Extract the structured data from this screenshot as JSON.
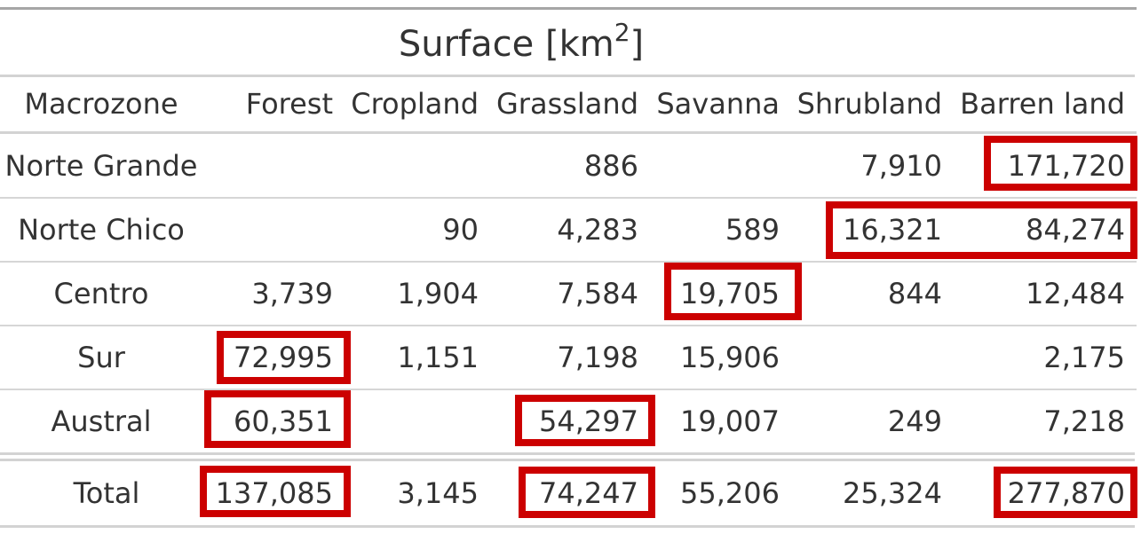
{
  "title": {
    "text": "Surface [km",
    "superscript": "2",
    "suffix": "]"
  },
  "columns": [
    "Macrozone",
    "Forest",
    "Cropland",
    "Grassland",
    "Savanna",
    "Shrubland",
    "Barren land"
  ],
  "rows": [
    {
      "macrozone": "Norte Grande",
      "forest": "",
      "cropland": "",
      "grassland": "886",
      "savanna": "",
      "shrubland": "7,910",
      "barren_land": "171,720"
    },
    {
      "macrozone": "Norte Chico",
      "forest": "",
      "cropland": "90",
      "grassland": "4,283",
      "savanna": "589",
      "shrubland": "16,321",
      "barren_land": "84,274"
    },
    {
      "macrozone": "Centro",
      "forest": "3,739",
      "cropland": "1,904",
      "grassland": "7,584",
      "savanna": "19,705",
      "shrubland": "844",
      "barren_land": "12,484"
    },
    {
      "macrozone": "Sur",
      "forest": "72,995",
      "cropland": "1,151",
      "grassland": "7,198",
      "savanna": "15,906",
      "shrubland": "",
      "barren_land": "2,175"
    },
    {
      "macrozone": "Austral",
      "forest": "60,351",
      "cropland": "",
      "grassland": "54,297",
      "savanna": "19,007",
      "shrubland": "249",
      "barren_land": "7,218"
    }
  ],
  "total": {
    "macrozone": "Total",
    "forest": "137,085",
    "cropland": "3,145",
    "grassland": "74,247",
    "savanna": "55,206",
    "shrubland": "25,324",
    "barren_land": "277,870"
  },
  "highlight_color": "#cc0000"
}
